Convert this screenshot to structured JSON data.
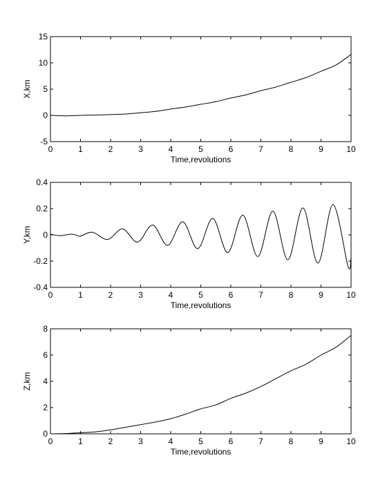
{
  "figure": {
    "background": "#ffffff",
    "line_color": "#000000"
  },
  "chart_data": [
    {
      "type": "line",
      "xlabel": "Time,revolutions",
      "ylabel": "X,km",
      "xlim": [
        0,
        10
      ],
      "ylim": [
        -5,
        15
      ],
      "xticks": [
        "0",
        "1",
        "2",
        "3",
        "4",
        "5",
        "6",
        "7",
        "8",
        "9",
        "10"
      ],
      "yticks": [
        "-5",
        "0",
        "5",
        "10",
        "15"
      ],
      "grid": false,
      "series": [
        {
          "x": [
            0,
            0.5,
            1,
            1.5,
            2,
            2.5,
            3,
            3.5,
            4,
            4.5,
            5,
            5.5,
            6,
            6.5,
            7,
            7.5,
            8,
            8.5,
            9,
            9.5,
            10
          ],
          "y": [
            0,
            -0.1,
            0,
            0.05,
            0.15,
            0.25,
            0.5,
            0.75,
            1.2,
            1.6,
            2.1,
            2.6,
            3.3,
            3.9,
            4.7,
            5.4,
            6.3,
            7.2,
            8.4,
            9.6,
            11.6
          ]
        }
      ]
    },
    {
      "type": "line",
      "xlabel": "Time,revolutions",
      "ylabel": "Y,km",
      "xlim": [
        0,
        10
      ],
      "ylim": [
        -0.4,
        0.4
      ],
      "xticks": [
        "0",
        "1",
        "2",
        "3",
        "4",
        "5",
        "6",
        "7",
        "8",
        "9",
        "10"
      ],
      "yticks": [
        "-0.4",
        "-0.2",
        "0",
        "0.2",
        "0.4"
      ],
      "grid": false,
      "series": [
        {
          "x": [
            0,
            0.25,
            0.4,
            0.7,
            0.9,
            1.0,
            1.4,
            1.9,
            2.4,
            2.9,
            3.4,
            3.9,
            4.4,
            4.9,
            5.4,
            5.9,
            6.4,
            6.9,
            7.4,
            7.9,
            8.4,
            8.9,
            9.4,
            9.9,
            10
          ],
          "y": [
            0.005,
            -0.005,
            -0.005,
            0.005,
            -0.005,
            -0.01,
            0.02,
            -0.035,
            0.045,
            -0.055,
            0.075,
            -0.08,
            0.1,
            -0.105,
            0.125,
            -0.135,
            0.15,
            -0.165,
            0.18,
            -0.19,
            0.205,
            -0.215,
            0.23,
            -0.24,
            -0.17
          ]
        }
      ]
    },
    {
      "type": "line",
      "xlabel": "Time,revolutions",
      "ylabel": "Z,km",
      "xlim": [
        0,
        10
      ],
      "ylim": [
        0,
        8
      ],
      "xticks": [
        "0",
        "1",
        "2",
        "3",
        "4",
        "5",
        "6",
        "7",
        "8",
        "9",
        "10"
      ],
      "yticks": [
        "0",
        "2",
        "4",
        "6",
        "8"
      ],
      "grid": false,
      "series": [
        {
          "x": [
            0,
            0.5,
            1,
            1.5,
            2,
            2.5,
            3,
            3.5,
            4,
            4.5,
            5,
            5.5,
            6,
            6.5,
            7,
            7.5,
            8,
            8.5,
            9,
            9.5,
            10
          ],
          "y": [
            0,
            0.02,
            0.08,
            0.15,
            0.3,
            0.5,
            0.7,
            0.9,
            1.15,
            1.5,
            1.9,
            2.2,
            2.7,
            3.1,
            3.6,
            4.2,
            4.8,
            5.3,
            6.0,
            6.6,
            7.5
          ]
        }
      ]
    }
  ]
}
